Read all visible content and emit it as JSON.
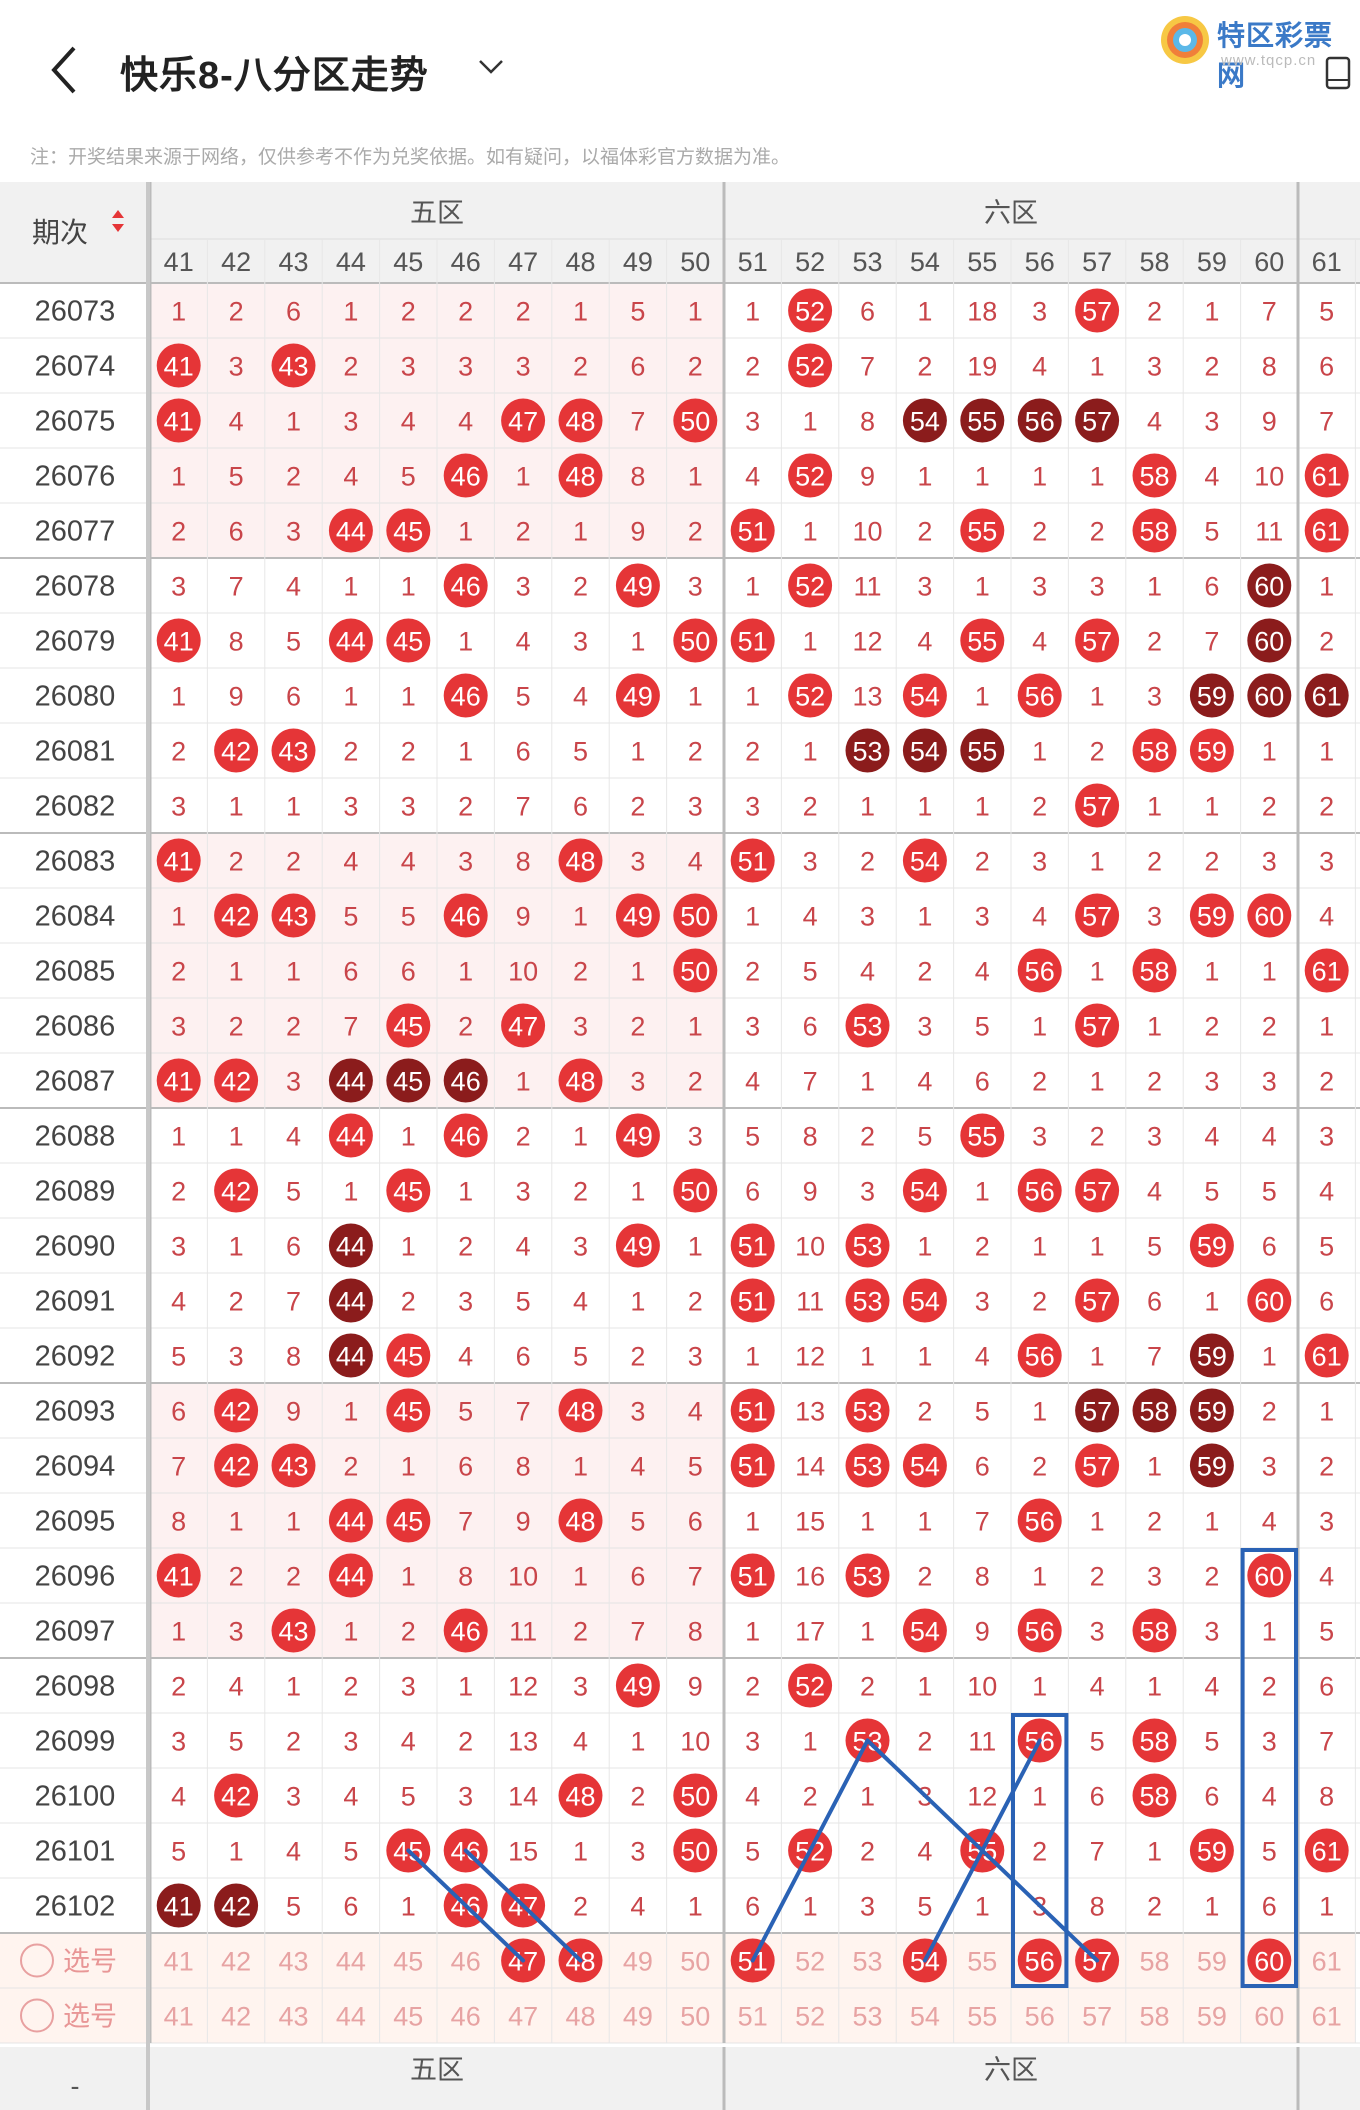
{
  "header": {
    "title": "快乐8-八分区走势",
    "logo_text": "特区彩票网",
    "logo_sub": "www.tqcp.cn",
    "note": "注：开奖结果来源于网络，仅供参考不作为兑奖依据。如有疑问，以福体彩官方数据为准。"
  },
  "table": {
    "period_header": "期次",
    "zones": [
      "五区",
      "六区"
    ],
    "columns": [
      41,
      42,
      43,
      44,
      45,
      46,
      47,
      48,
      49,
      50,
      51,
      52,
      53,
      54,
      55,
      56,
      57,
      58,
      59,
      60,
      61
    ],
    "rows": [
      {
        "period": "26073",
        "cells": [
          "1",
          "2",
          "6",
          "1",
          "2",
          "2",
          "2",
          "1",
          "5",
          "1",
          "1",
          "52",
          "6",
          "1",
          "18",
          "3",
          "57",
          "2",
          "1",
          "7",
          "5"
        ]
      },
      {
        "period": "26074",
        "cells": [
          "41",
          "3",
          "43",
          "2",
          "3",
          "3",
          "3",
          "2",
          "6",
          "2",
          "2",
          "52",
          "7",
          "2",
          "19",
          "4",
          "1",
          "3",
          "2",
          "8",
          "6"
        ]
      },
      {
        "period": "26075",
        "cells": [
          "41",
          "4",
          "1",
          "3",
          "4",
          "4",
          "47",
          "48",
          "7",
          "50",
          "3",
          "1",
          "8",
          "54",
          "55",
          "56",
          "57",
          "4",
          "3",
          "9",
          "7"
        ]
      },
      {
        "period": "26076",
        "cells": [
          "1",
          "5",
          "2",
          "4",
          "5",
          "46",
          "1",
          "48",
          "8",
          "1",
          "4",
          "52",
          "9",
          "1",
          "1",
          "1",
          "1",
          "58",
          "4",
          "10",
          "61"
        ]
      },
      {
        "period": "26077",
        "cells": [
          "2",
          "6",
          "3",
          "44",
          "45",
          "1",
          "2",
          "1",
          "9",
          "2",
          "51",
          "1",
          "10",
          "2",
          "55",
          "2",
          "2",
          "58",
          "5",
          "11",
          "61"
        ]
      },
      {
        "period": "26078",
        "cells": [
          "3",
          "7",
          "4",
          "1",
          "1",
          "46",
          "3",
          "2",
          "49",
          "3",
          "1",
          "52",
          "11",
          "3",
          "1",
          "3",
          "3",
          "1",
          "6",
          "60",
          "1"
        ]
      },
      {
        "period": "26079",
        "cells": [
          "41",
          "8",
          "5",
          "44",
          "45",
          "1",
          "4",
          "3",
          "1",
          "50",
          "51",
          "1",
          "12",
          "4",
          "55",
          "4",
          "57",
          "2",
          "7",
          "60",
          "2"
        ]
      },
      {
        "period": "26080",
        "cells": [
          "1",
          "9",
          "6",
          "1",
          "1",
          "46",
          "5",
          "4",
          "49",
          "1",
          "1",
          "52",
          "13",
          "54",
          "1",
          "56",
          "1",
          "3",
          "59",
          "60",
          "61"
        ]
      },
      {
        "period": "26081",
        "cells": [
          "2",
          "42",
          "43",
          "2",
          "2",
          "1",
          "6",
          "5",
          "1",
          "2",
          "2",
          "1",
          "53",
          "54",
          "55",
          "1",
          "2",
          "58",
          "59",
          "1",
          "1"
        ]
      },
      {
        "period": "26082",
        "cells": [
          "3",
          "1",
          "1",
          "3",
          "3",
          "2",
          "7",
          "6",
          "2",
          "3",
          "3",
          "2",
          "1",
          "1",
          "1",
          "2",
          "57",
          "1",
          "1",
          "2",
          "2"
        ]
      },
      {
        "period": "26083",
        "cells": [
          "41",
          "2",
          "2",
          "4",
          "4",
          "3",
          "8",
          "48",
          "3",
          "4",
          "51",
          "3",
          "2",
          "54",
          "2",
          "3",
          "1",
          "2",
          "2",
          "3",
          "3"
        ]
      },
      {
        "period": "26084",
        "cells": [
          "1",
          "42",
          "43",
          "5",
          "5",
          "46",
          "9",
          "1",
          "49",
          "50",
          "1",
          "4",
          "3",
          "1",
          "3",
          "4",
          "57",
          "3",
          "59",
          "60",
          "4"
        ]
      },
      {
        "period": "26085",
        "cells": [
          "2",
          "1",
          "1",
          "6",
          "6",
          "1",
          "10",
          "2",
          "1",
          "50",
          "2",
          "5",
          "4",
          "2",
          "4",
          "56",
          "1",
          "58",
          "1",
          "1",
          "61"
        ]
      },
      {
        "period": "26086",
        "cells": [
          "3",
          "2",
          "2",
          "7",
          "45",
          "2",
          "47",
          "3",
          "2",
          "1",
          "3",
          "6",
          "53",
          "3",
          "5",
          "1",
          "57",
          "1",
          "2",
          "2",
          "1"
        ]
      },
      {
        "period": "26087",
        "cells": [
          "41",
          "42",
          "3",
          "44",
          "45",
          "46",
          "1",
          "48",
          "3",
          "2",
          "4",
          "7",
          "1",
          "4",
          "6",
          "2",
          "1",
          "2",
          "3",
          "3",
          "2"
        ]
      },
      {
        "period": "26088",
        "cells": [
          "1",
          "1",
          "4",
          "44",
          "1",
          "46",
          "2",
          "1",
          "49",
          "3",
          "5",
          "8",
          "2",
          "5",
          "55",
          "3",
          "2",
          "3",
          "4",
          "4",
          "3"
        ]
      },
      {
        "period": "26089",
        "cells": [
          "2",
          "42",
          "5",
          "1",
          "45",
          "1",
          "3",
          "2",
          "1",
          "50",
          "6",
          "9",
          "3",
          "54",
          "1",
          "56",
          "57",
          "4",
          "5",
          "5",
          "4"
        ]
      },
      {
        "period": "26090",
        "cells": [
          "3",
          "1",
          "6",
          "44",
          "1",
          "2",
          "4",
          "3",
          "49",
          "1",
          "51",
          "10",
          "53",
          "1",
          "2",
          "1",
          "1",
          "5",
          "59",
          "6",
          "5"
        ]
      },
      {
        "period": "26091",
        "cells": [
          "4",
          "2",
          "7",
          "44",
          "2",
          "3",
          "5",
          "4",
          "1",
          "2",
          "51",
          "11",
          "53",
          "54",
          "3",
          "2",
          "57",
          "6",
          "1",
          "60",
          "6"
        ]
      },
      {
        "period": "26092",
        "cells": [
          "5",
          "3",
          "8",
          "44",
          "45",
          "4",
          "6",
          "5",
          "2",
          "3",
          "1",
          "12",
          "1",
          "1",
          "4",
          "56",
          "1",
          "7",
          "59",
          "1",
          "61"
        ]
      },
      {
        "period": "26093",
        "cells": [
          "6",
          "42",
          "9",
          "1",
          "45",
          "5",
          "7",
          "48",
          "3",
          "4",
          "51",
          "13",
          "53",
          "2",
          "5",
          "1",
          "57",
          "58",
          "59",
          "2",
          "1"
        ]
      },
      {
        "period": "26094",
        "cells": [
          "7",
          "42",
          "43",
          "2",
          "1",
          "6",
          "8",
          "1",
          "4",
          "5",
          "51",
          "14",
          "53",
          "54",
          "6",
          "2",
          "57",
          "1",
          "59",
          "3",
          "2"
        ]
      },
      {
        "period": "26095",
        "cells": [
          "8",
          "1",
          "1",
          "44",
          "45",
          "7",
          "9",
          "48",
          "5",
          "6",
          "1",
          "15",
          "1",
          "1",
          "7",
          "56",
          "1",
          "2",
          "1",
          "4",
          "3"
        ]
      },
      {
        "period": "26096",
        "cells": [
          "41",
          "2",
          "2",
          "44",
          "1",
          "8",
          "10",
          "1",
          "6",
          "7",
          "51",
          "16",
          "53",
          "2",
          "8",
          "1",
          "2",
          "3",
          "2",
          "60",
          "4"
        ]
      },
      {
        "period": "26097",
        "cells": [
          "1",
          "3",
          "43",
          "1",
          "2",
          "46",
          "11",
          "2",
          "7",
          "8",
          "1",
          "17",
          "1",
          "54",
          "9",
          "56",
          "3",
          "58",
          "3",
          "1",
          "5"
        ]
      },
      {
        "period": "26098",
        "cells": [
          "2",
          "4",
          "1",
          "2",
          "3",
          "1",
          "12",
          "3",
          "49",
          "9",
          "2",
          "52",
          "2",
          "1",
          "10",
          "1",
          "4",
          "1",
          "4",
          "2",
          "6"
        ]
      },
      {
        "period": "26099",
        "cells": [
          "3",
          "5",
          "2",
          "3",
          "4",
          "2",
          "13",
          "4",
          "1",
          "10",
          "3",
          "1",
          "53",
          "2",
          "11",
          "56",
          "5",
          "58",
          "5",
          "3",
          "7"
        ]
      },
      {
        "period": "26100",
        "cells": [
          "4",
          "42",
          "3",
          "4",
          "5",
          "3",
          "14",
          "48",
          "2",
          "50",
          "4",
          "2",
          "1",
          "3",
          "12",
          "1",
          "6",
          "58",
          "6",
          "4",
          "8"
        ]
      },
      {
        "period": "26101",
        "cells": [
          "5",
          "1",
          "4",
          "5",
          "45",
          "46",
          "15",
          "1",
          "3",
          "50",
          "5",
          "52",
          "2",
          "4",
          "55",
          "2",
          "7",
          "1",
          "59",
          "5",
          "61"
        ]
      },
      {
        "period": "26102",
        "cells": [
          "41",
          "42",
          "5",
          "6",
          "1",
          "46",
          "47",
          "2",
          "4",
          "1",
          "6",
          "1",
          "3",
          "5",
          "1",
          "3",
          "8",
          "2",
          "1",
          "6",
          "1"
        ]
      }
    ],
    "dark_balls": [
      [
        "26075",
        "54"
      ],
      [
        "26075",
        "55"
      ],
      [
        "26075",
        "56"
      ],
      [
        "26075",
        "57"
      ],
      [
        "26078",
        "60"
      ],
      [
        "26079",
        "60"
      ],
      [
        "26080",
        "59"
      ],
      [
        "26080",
        "60"
      ],
      [
        "26080",
        "61"
      ],
      [
        "26081",
        "53"
      ],
      [
        "26081",
        "54"
      ],
      [
        "26081",
        "55"
      ],
      [
        "26087",
        "44"
      ],
      [
        "26087",
        "45"
      ],
      [
        "26087",
        "46"
      ],
      [
        "26090",
        "44"
      ],
      [
        "26091",
        "44"
      ],
      [
        "26092",
        "44"
      ],
      [
        "26092",
        "59"
      ],
      [
        "26093",
        "57"
      ],
      [
        "26093",
        "58"
      ],
      [
        "26093",
        "59"
      ],
      [
        "26094",
        "59"
      ],
      [
        "26102",
        "41"
      ],
      [
        "26102",
        "42"
      ]
    ],
    "select_label": "选号",
    "pick_row": [
      "41",
      "42",
      "43",
      "44",
      "45",
      "46",
      "47",
      "48",
      "49",
      "50",
      "51",
      "52",
      "53",
      "54",
      "55",
      "56",
      "57",
      "58",
      "59",
      "60",
      "61"
    ],
    "pick_selected": [
      "47",
      "48",
      "51",
      "54",
      "56",
      "57",
      "60"
    ],
    "pick_row2": [
      "41",
      "42",
      "43",
      "44",
      "45",
      "46",
      "47",
      "48",
      "49",
      "50",
      "51",
      "52",
      "53",
      "54",
      "55",
      "56",
      "57",
      "58",
      "59",
      "60",
      "61"
    ],
    "footer_period": "-",
    "highlight_boxes": [
      {
        "col": "56",
        "from": "26099",
        "to": "pick"
      },
      {
        "col": "60",
        "from": "26096",
        "to": "pick"
      }
    ],
    "trend_lines": [
      [
        [
          "26101",
          "45"
        ],
        [
          "pick",
          "47"
        ]
      ],
      [
        [
          "26101",
          "46"
        ],
        [
          "pick",
          "48"
        ]
      ],
      [
        [
          "pick",
          "51"
        ],
        [
          "26099",
          "53"
        ]
      ],
      [
        [
          "26099",
          "53"
        ],
        [
          "pick",
          "57"
        ]
      ],
      [
        [
          "pick",
          "54"
        ],
        [
          "26099",
          "56"
        ]
      ]
    ],
    "colors": {
      "ball": "#e53537",
      "dark_ball": "#8b1c1c",
      "line": "#2a62b5",
      "num": "#c9454a",
      "header_bg": "#f1f1f1"
    }
  }
}
